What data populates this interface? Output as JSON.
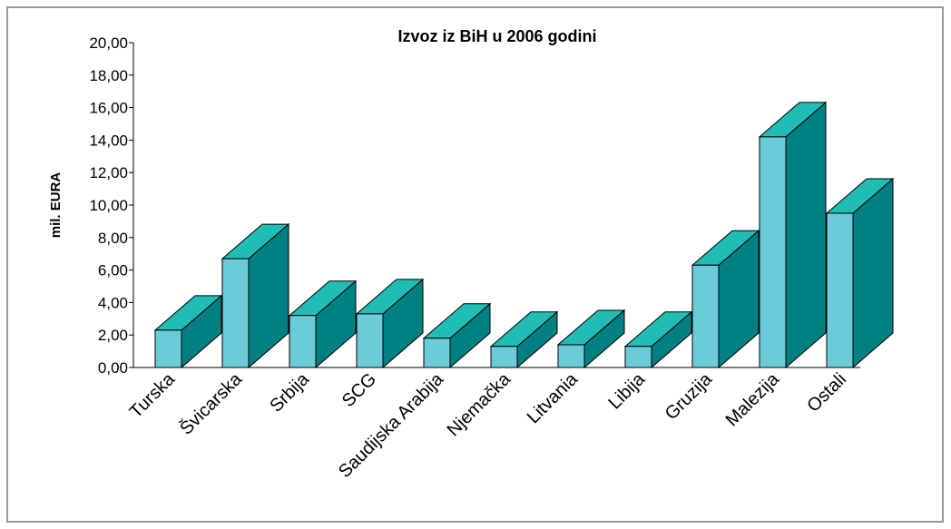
{
  "chart_data": {
    "type": "bar3d",
    "title": "Izvoz iz BiH u 2006 godini",
    "y_label": "mil. EURA",
    "categories": [
      "Turska",
      "Švicarska",
      "Srbija",
      "SCG",
      "Saudijska Arabija",
      "Njemačka",
      "Litvania",
      "Libija",
      "Gruzija",
      "Malezija",
      "Ostali"
    ],
    "values": [
      2.3,
      6.7,
      3.2,
      3.3,
      1.8,
      1.3,
      1.4,
      1.3,
      6.3,
      14.2,
      9.5
    ],
    "colors": {
      "front": "#6ccbd9",
      "top": "#20bdb5",
      "side": "#008080"
    },
    "ylim": [
      0,
      20
    ],
    "yticks": [
      {
        "value": 0,
        "label": "0,00"
      },
      {
        "value": 2,
        "label": "2,00"
      },
      {
        "value": 4,
        "label": "4,00"
      },
      {
        "value": 6,
        "label": "6,00"
      },
      {
        "value": 8,
        "label": "8,00"
      },
      {
        "value": 10,
        "label": "10,00"
      },
      {
        "value": 12,
        "label": "12,00"
      },
      {
        "value": 14,
        "label": "14,00"
      },
      {
        "value": 16,
        "label": "16,00"
      },
      {
        "value": 18,
        "label": "18,00"
      },
      {
        "value": 20,
        "label": "20,00"
      }
    ]
  }
}
